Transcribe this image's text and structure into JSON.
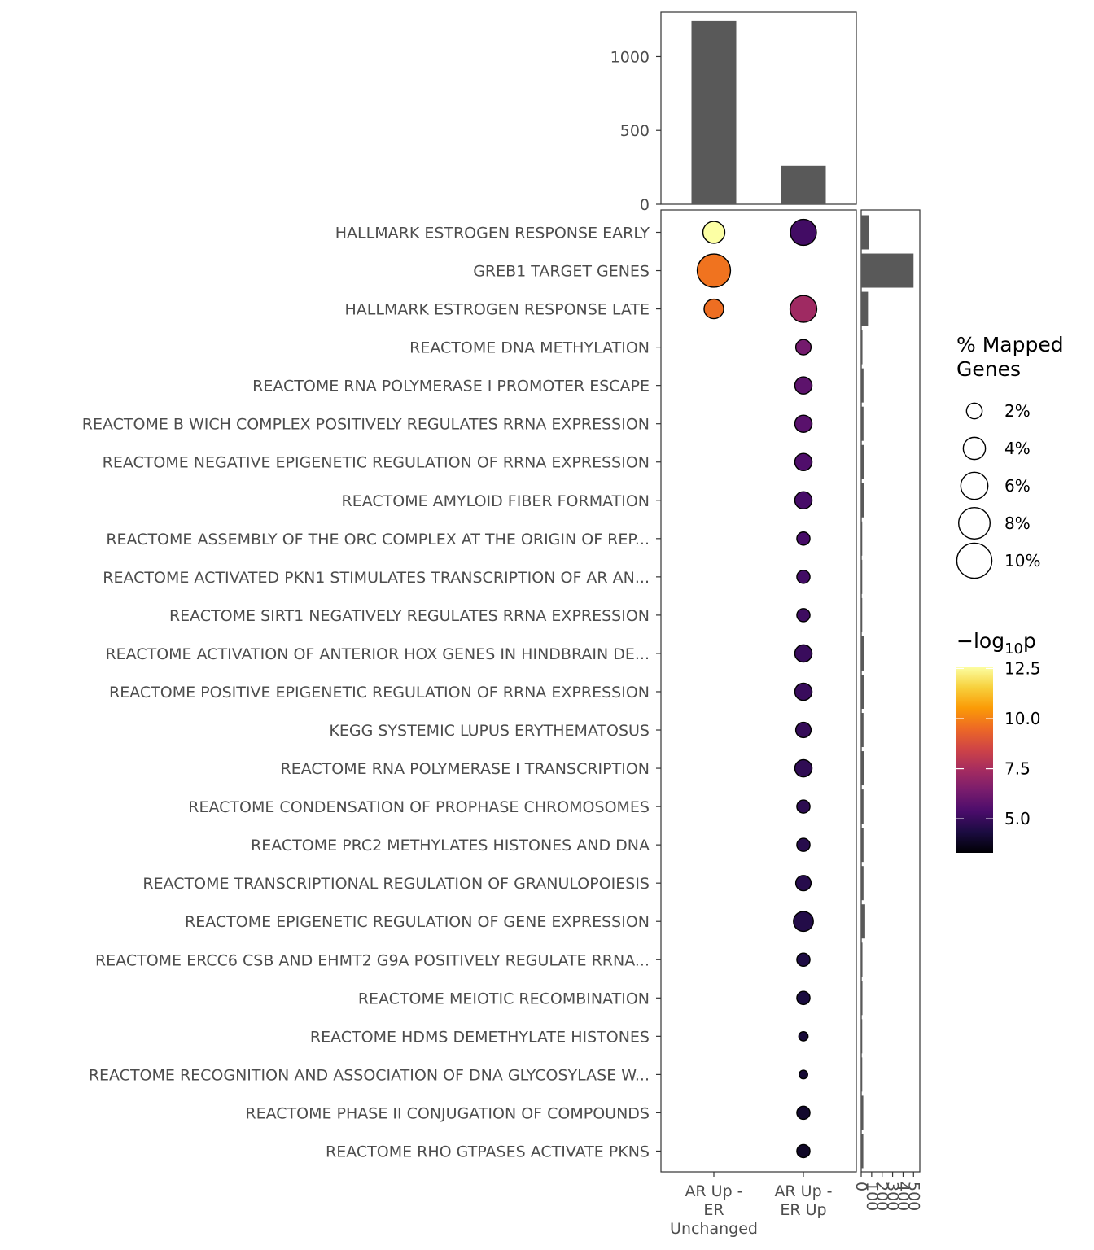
{
  "chart_data": [
    {
      "type": "bar",
      "panel": "top",
      "categories": [
        "AR Up - ER Unchanged",
        "AR Up - ER Up"
      ],
      "values": [
        1240,
        260
      ],
      "ylim": [
        0,
        1300
      ],
      "y_ticks": [
        0,
        500,
        1000
      ],
      "y_tick_labels": [
        "0",
        "500",
        "1000"
      ]
    },
    {
      "type": "scatter",
      "panel": "main",
      "x_categories": [
        "AR Up - ER Unchanged",
        "AR Up - ER Up"
      ],
      "x_tick_labels": [
        [
          "AR Up -",
          "ER",
          "Unchanged"
        ],
        [
          "AR Up -",
          "ER Up"
        ]
      ],
      "pathways": [
        "HALLMARK ESTROGEN RESPONSE EARLY",
        "GREB1 TARGET GENES",
        "HALLMARK ESTROGEN RESPONSE LATE",
        "REACTOME DNA METHYLATION",
        "REACTOME RNA POLYMERASE I PROMOTER ESCAPE",
        "REACTOME B WICH COMPLEX POSITIVELY REGULATES RRNA EXPRESSION",
        "REACTOME NEGATIVE EPIGENETIC REGULATION OF RRNA EXPRESSION",
        "REACTOME AMYLOID FIBER FORMATION",
        "REACTOME ASSEMBLY OF THE ORC COMPLEX AT THE ORIGIN OF REP...",
        "REACTOME ACTIVATED PKN1 STIMULATES TRANSCRIPTION OF AR AN...",
        "REACTOME SIRT1 NEGATIVELY REGULATES RRNA EXPRESSION",
        "REACTOME ACTIVATION OF ANTERIOR HOX GENES IN HINDBRAIN DE...",
        "REACTOME POSITIVE EPIGENETIC REGULATION OF RRNA EXPRESSION",
        "KEGG SYSTEMIC LUPUS ERYTHEMATOSUS",
        "REACTOME RNA POLYMERASE I TRANSCRIPTION",
        "REACTOME CONDENSATION OF PROPHASE CHROMOSOMES",
        "REACTOME PRC2 METHYLATES HISTONES AND DNA",
        "REACTOME TRANSCRIPTIONAL REGULATION OF GRANULOPOIESIS",
        "REACTOME EPIGENETIC REGULATION OF GENE EXPRESSION",
        "REACTOME ERCC6 CSB AND EHMT2 G9A POSITIVELY REGULATE RRNA...",
        "REACTOME MEIOTIC RECOMBINATION",
        "REACTOME HDMS DEMETHYLATE HISTONES",
        "REACTOME RECOGNITION AND ASSOCIATION OF DNA GLYCOSYLASE W...",
        "REACTOME PHASE II CONJUGATION OF COMPOUNDS",
        "REACTOME RHO GTPASES ACTIVATE PKNS"
      ],
      "points": [
        {
          "row": 0,
          "col": 0,
          "pct": 3.9,
          "neglog10p": 12.6
        },
        {
          "row": 0,
          "col": 1,
          "pct": 5.5,
          "neglog10p": 5.2
        },
        {
          "row": 1,
          "col": 0,
          "pct": 9.0,
          "neglog10p": 9.7
        },
        {
          "row": 2,
          "col": 0,
          "pct": 3.1,
          "neglog10p": 9.6
        },
        {
          "row": 2,
          "col": 1,
          "pct": 5.8,
          "neglog10p": 7.3
        },
        {
          "row": 3,
          "col": 1,
          "pct": 1.9,
          "neglog10p": 6.3
        },
        {
          "row": 4,
          "col": 1,
          "pct": 2.4,
          "neglog10p": 5.8
        },
        {
          "row": 5,
          "col": 1,
          "pct": 2.4,
          "neglog10p": 5.7
        },
        {
          "row": 6,
          "col": 1,
          "pct": 2.4,
          "neglog10p": 5.5
        },
        {
          "row": 7,
          "col": 1,
          "pct": 2.4,
          "neglog10p": 5.3
        },
        {
          "row": 8,
          "col": 1,
          "pct": 1.4,
          "neglog10p": 5.3
        },
        {
          "row": 9,
          "col": 1,
          "pct": 1.4,
          "neglog10p": 5.2
        },
        {
          "row": 10,
          "col": 1,
          "pct": 1.4,
          "neglog10p": 5.1
        },
        {
          "row": 11,
          "col": 1,
          "pct": 2.4,
          "neglog10p": 5.0
        },
        {
          "row": 12,
          "col": 1,
          "pct": 2.4,
          "neglog10p": 5.0
        },
        {
          "row": 13,
          "col": 1,
          "pct": 1.9,
          "neglog10p": 4.9
        },
        {
          "row": 14,
          "col": 1,
          "pct": 2.4,
          "neglog10p": 4.8
        },
        {
          "row": 15,
          "col": 1,
          "pct": 1.4,
          "neglog10p": 4.7
        },
        {
          "row": 16,
          "col": 1,
          "pct": 1.4,
          "neglog10p": 4.6
        },
        {
          "row": 17,
          "col": 1,
          "pct": 1.9,
          "neglog10p": 4.6
        },
        {
          "row": 18,
          "col": 1,
          "pct": 3.2,
          "neglog10p": 4.5
        },
        {
          "row": 19,
          "col": 1,
          "pct": 1.4,
          "neglog10p": 4.4
        },
        {
          "row": 20,
          "col": 1,
          "pct": 1.4,
          "neglog10p": 4.3
        },
        {
          "row": 21,
          "col": 1,
          "pct": 0.7,
          "neglog10p": 4.2
        },
        {
          "row": 22,
          "col": 1,
          "pct": 0.6,
          "neglog10p": 4.1
        },
        {
          "row": 23,
          "col": 1,
          "pct": 1.4,
          "neglog10p": 4.0
        },
        {
          "row": 24,
          "col": 1,
          "pct": 1.4,
          "neglog10p": 3.9
        }
      ]
    },
    {
      "type": "bar",
      "panel": "right",
      "orientation": "horizontal",
      "values": [
        75,
        500,
        65,
        12,
        22,
        22,
        28,
        28,
        10,
        10,
        10,
        28,
        28,
        22,
        28,
        22,
        22,
        22,
        38,
        12,
        12,
        10,
        10,
        20,
        20
      ],
      "xlim": [
        0,
        560
      ],
      "x_ticks": [
        0,
        100,
        200,
        300,
        400,
        500
      ],
      "x_tick_labels": [
        "0",
        "100",
        "200",
        "300",
        "400",
        "500"
      ]
    }
  ],
  "legend": {
    "size_title": [
      "% Mapped",
      "Genes"
    ],
    "size_entries": [
      {
        "label": "2%",
        "pct": 2
      },
      {
        "label": "4%",
        "pct": 4
      },
      {
        "label": "6%",
        "pct": 6
      },
      {
        "label": "8%",
        "pct": 8
      },
      {
        "label": "10%",
        "pct": 10
      }
    ],
    "color_title_prefix": "−log",
    "color_title_sub": "10",
    "color_title_suffix": "p",
    "color_ticks": [
      {
        "label": "12.5",
        "value": 12.5
      },
      {
        "label": "10.0",
        "value": 10.0
      },
      {
        "label": "7.5",
        "value": 7.5
      },
      {
        "label": "5.0",
        "value": 5.0
      }
    ],
    "color_range": [
      3.3,
      12.6
    ],
    "inferno_stops": [
      "#000004",
      "#1b0c41",
      "#4a0c6b",
      "#781c6d",
      "#a52c60",
      "#cf4446",
      "#ed6925",
      "#fb9b06",
      "#f7d13d",
      "#fcffa4"
    ]
  }
}
